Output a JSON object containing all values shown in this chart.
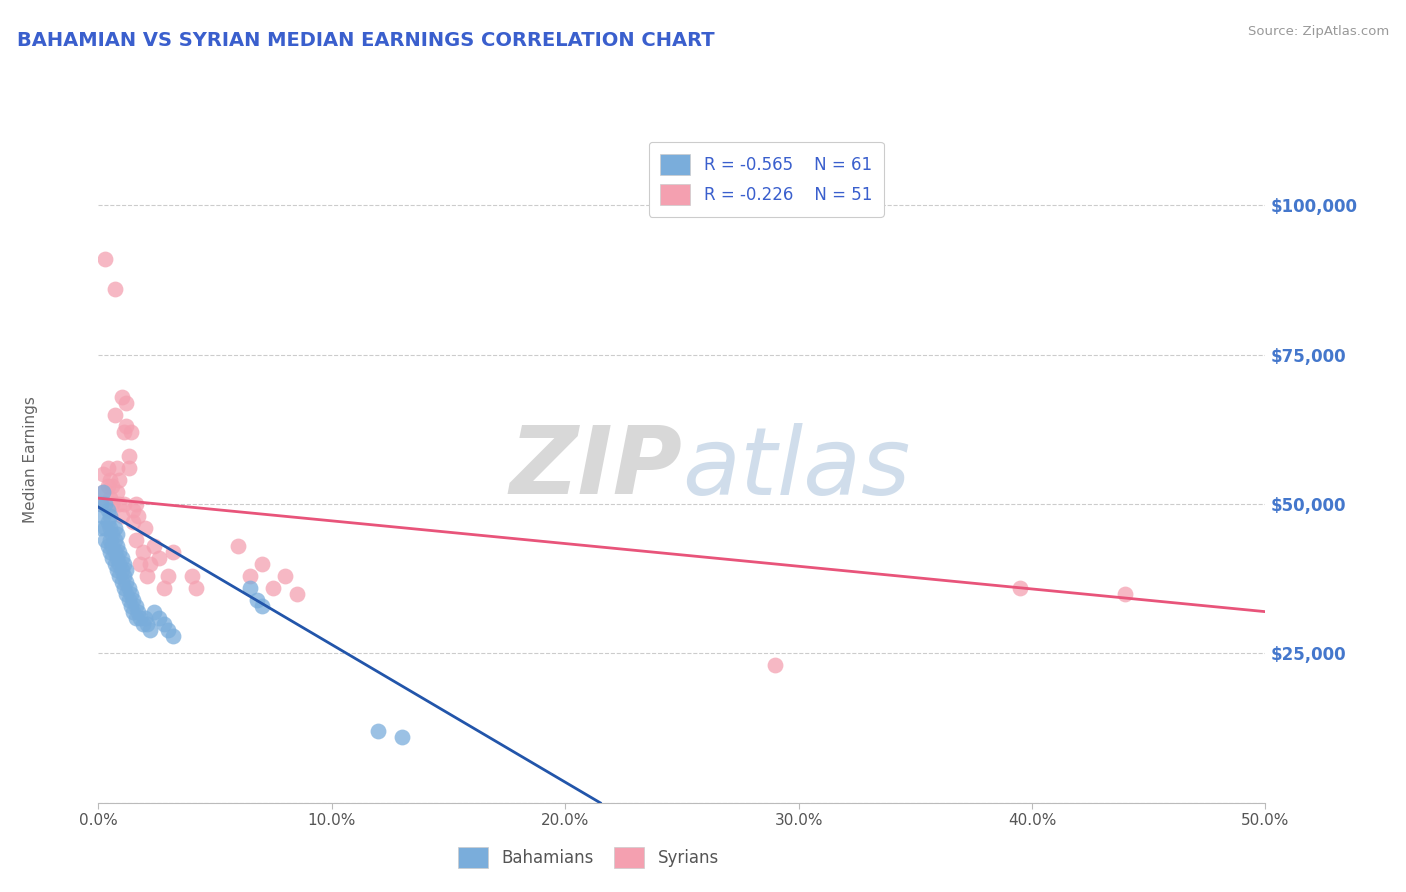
{
  "title": "BAHAMIAN VS SYRIAN MEDIAN EARNINGS CORRELATION CHART",
  "source": "Source: ZipAtlas.com",
  "ylabel": "Median Earnings",
  "xlim": [
    0.0,
    0.5
  ],
  "ylim": [
    0,
    112000
  ],
  "xtick_labels": [
    "0.0%",
    "10.0%",
    "20.0%",
    "30.0%",
    "40.0%",
    "50.0%"
  ],
  "xtick_vals": [
    0.0,
    0.1,
    0.2,
    0.3,
    0.4,
    0.5
  ],
  "ytick_vals": [
    0,
    25000,
    50000,
    75000,
    100000
  ],
  "ytick_labels": [
    "",
    "$25,000",
    "$50,000",
    "$75,000",
    "$100,000"
  ],
  "bahamian_color": "#7aaddb",
  "syrian_color": "#f4a0b0",
  "bahamian_line_color": "#2255aa",
  "syrian_line_color": "#e8547a",
  "legend_r1": "R = -0.565",
  "legend_n1": "N = 61",
  "legend_r2": "R = -0.226",
  "legend_n2": "N = 51",
  "title_color": "#3a5fcd",
  "ytick_color": "#4477cc",
  "background_color": "#ffffff",
  "grid_color": "#cccccc",
  "bahamian_x": [
    0.001,
    0.001,
    0.002,
    0.002,
    0.003,
    0.003,
    0.003,
    0.004,
    0.004,
    0.004,
    0.005,
    0.005,
    0.005,
    0.005,
    0.006,
    0.006,
    0.006,
    0.007,
    0.007,
    0.007,
    0.007,
    0.008,
    0.008,
    0.008,
    0.008,
    0.009,
    0.009,
    0.009,
    0.01,
    0.01,
    0.01,
    0.011,
    0.011,
    0.011,
    0.012,
    0.012,
    0.012,
    0.013,
    0.013,
    0.014,
    0.014,
    0.015,
    0.015,
    0.016,
    0.016,
    0.017,
    0.018,
    0.019,
    0.02,
    0.021,
    0.022,
    0.024,
    0.026,
    0.028,
    0.03,
    0.032,
    0.065,
    0.068,
    0.07,
    0.12,
    0.13
  ],
  "bahamian_y": [
    46000,
    50000,
    48000,
    52000,
    44000,
    46000,
    50000,
    43000,
    47000,
    49000,
    42000,
    44000,
    46000,
    48000,
    41000,
    43000,
    45000,
    40000,
    42000,
    44000,
    46000,
    39000,
    41000,
    43000,
    45000,
    38000,
    40000,
    42000,
    37000,
    39000,
    41000,
    36000,
    38000,
    40000,
    35000,
    37000,
    39000,
    34000,
    36000,
    33000,
    35000,
    32000,
    34000,
    31000,
    33000,
    32000,
    31000,
    30000,
    31000,
    30000,
    29000,
    32000,
    31000,
    30000,
    29000,
    28000,
    36000,
    34000,
    33000,
    12000,
    11000
  ],
  "syrian_x": [
    0.001,
    0.002,
    0.002,
    0.003,
    0.004,
    0.004,
    0.005,
    0.005,
    0.006,
    0.006,
    0.007,
    0.007,
    0.008,
    0.008,
    0.009,
    0.009,
    0.01,
    0.01,
    0.011,
    0.011,
    0.012,
    0.012,
    0.013,
    0.013,
    0.014,
    0.015,
    0.015,
    0.016,
    0.016,
    0.017,
    0.018,
    0.019,
    0.02,
    0.021,
    0.022,
    0.024,
    0.026,
    0.028,
    0.03,
    0.032,
    0.04,
    0.042,
    0.06,
    0.065,
    0.07,
    0.075,
    0.08,
    0.085,
    0.29,
    0.395,
    0.44
  ],
  "syrian_y": [
    50000,
    55000,
    52000,
    91000,
    53000,
    56000,
    51000,
    54000,
    50000,
    53000,
    86000,
    65000,
    52000,
    56000,
    50000,
    54000,
    68000,
    48000,
    50000,
    62000,
    63000,
    67000,
    58000,
    56000,
    62000,
    47000,
    49000,
    50000,
    44000,
    48000,
    40000,
    42000,
    46000,
    38000,
    40000,
    43000,
    41000,
    36000,
    38000,
    42000,
    38000,
    36000,
    43000,
    38000,
    40000,
    36000,
    38000,
    35000,
    23000,
    36000,
    35000
  ],
  "blue_line_x": [
    0.0,
    0.215
  ],
  "blue_line_y": [
    49500,
    0
  ],
  "pink_line_x": [
    0.0,
    0.5
  ],
  "pink_line_y": [
    51000,
    32000
  ]
}
